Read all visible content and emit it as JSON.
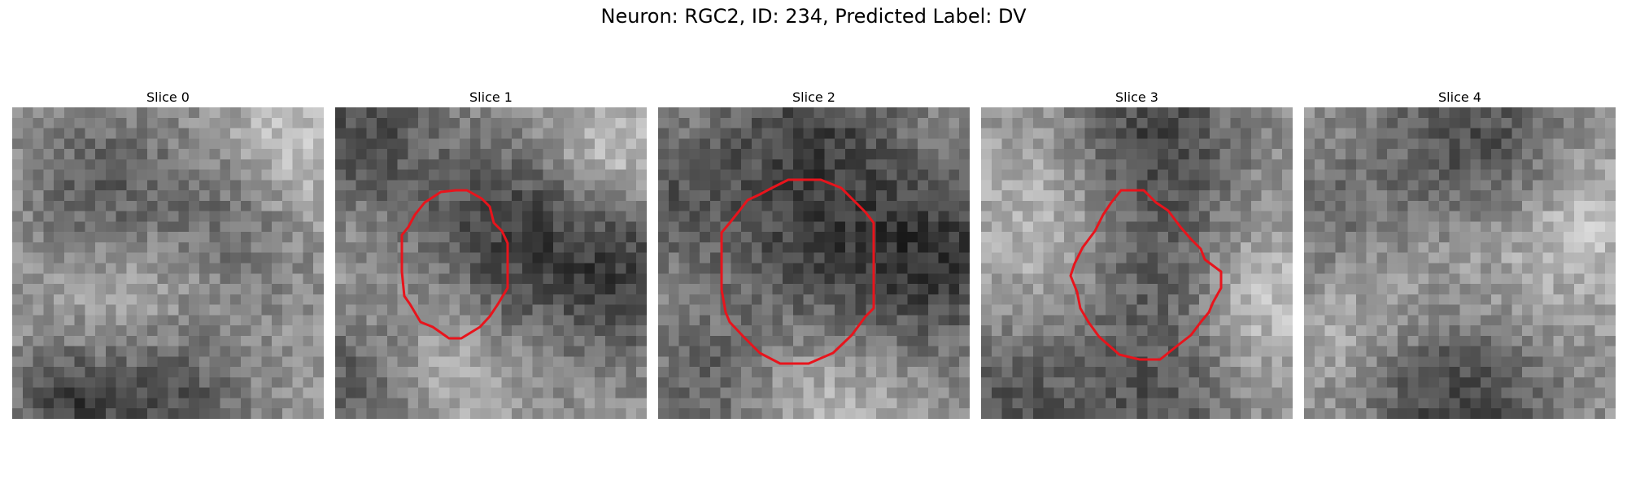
{
  "figure": {
    "title": "Neuron: RGC2, ID: 234, Predicted Label: DV"
  },
  "panels": [
    {
      "title": "Slice 0",
      "has_contour": false
    },
    {
      "title": "Slice 1",
      "has_contour": true
    },
    {
      "title": "Slice 2",
      "has_contour": true
    },
    {
      "title": "Slice 3",
      "has_contour": true
    },
    {
      "title": "Slice 4",
      "has_contour": false
    }
  ],
  "colors": {
    "contour": "#e8141c",
    "colormap": "gray"
  }
}
